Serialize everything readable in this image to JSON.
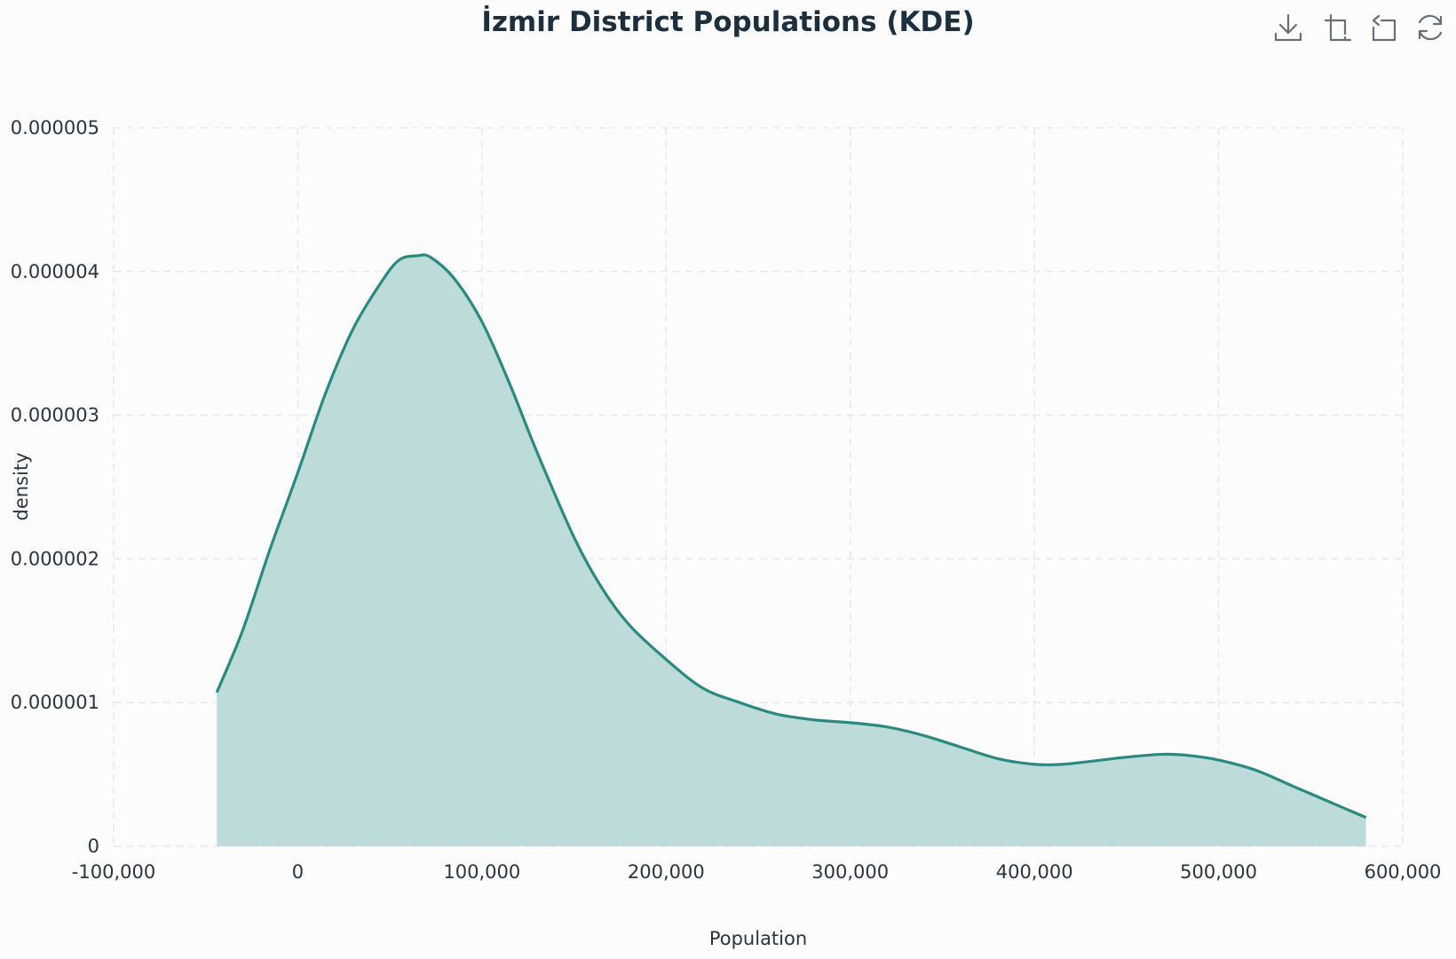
{
  "chart_data": {
    "type": "area",
    "title": "İzmir District Populations (KDE)",
    "xlabel": "Population",
    "ylabel": "density",
    "xlim": [
      -100000,
      600000
    ],
    "ylim": [
      0,
      5e-06
    ],
    "x_ticks": [
      -100000,
      0,
      100000,
      200000,
      300000,
      400000,
      500000,
      600000
    ],
    "x_tick_labels": [
      "-100,000",
      "0",
      "100,000",
      "200,000",
      "300,000",
      "400,000",
      "500,000",
      "600,000"
    ],
    "y_ticks": [
      0,
      1e-06,
      2e-06,
      3e-06,
      4e-06,
      5e-06
    ],
    "y_tick_labels": [
      "0",
      "0.000001",
      "0.000002",
      "0.000003",
      "0.000004",
      "0.000005"
    ],
    "grid": true,
    "colors": {
      "line": "#2a8a82",
      "fill": "#bddbd9",
      "grid": "#e6e8eb"
    },
    "series": [
      {
        "x": [
          -44000,
          -30000,
          -15000,
          0,
          15000,
          30000,
          45000,
          55000,
          65000,
          72000,
          85000,
          100000,
          115000,
          130000,
          150000,
          165000,
          180000,
          200000,
          220000,
          240000,
          260000,
          280000,
          300000,
          320000,
          340000,
          360000,
          380000,
          400000,
          415000,
          430000,
          450000,
          470000,
          485000,
          500000,
          520000,
          540000,
          560000,
          580000
        ],
        "y": [
          1.07e-06,
          1.5e-06,
          2.07e-06,
          2.6e-06,
          3.15e-06,
          3.6e-06,
          3.92e-06,
          4.08e-06,
          4.11e-06,
          4.1e-06,
          3.95e-06,
          3.65e-06,
          3.22e-06,
          2.74e-06,
          2.15e-06,
          1.8e-06,
          1.54e-06,
          1.3e-06,
          1.1e-06,
          1e-06,
          9.2e-07,
          8.8e-07,
          8.6e-07,
          8.3e-07,
          7.7e-07,
          6.9e-07,
          6.1e-07,
          5.7e-07,
          5.7e-07,
          5.9e-07,
          6.2e-07,
          6.4e-07,
          6.3e-07,
          6e-07,
          5.3e-07,
          4.2e-07,
          3.1e-07,
          2e-07
        ]
      }
    ]
  },
  "toolbar": [
    {
      "name": "download-icon"
    },
    {
      "name": "zoom-select-icon"
    },
    {
      "name": "zoom-reset-icon"
    },
    {
      "name": "refresh-icon"
    }
  ]
}
